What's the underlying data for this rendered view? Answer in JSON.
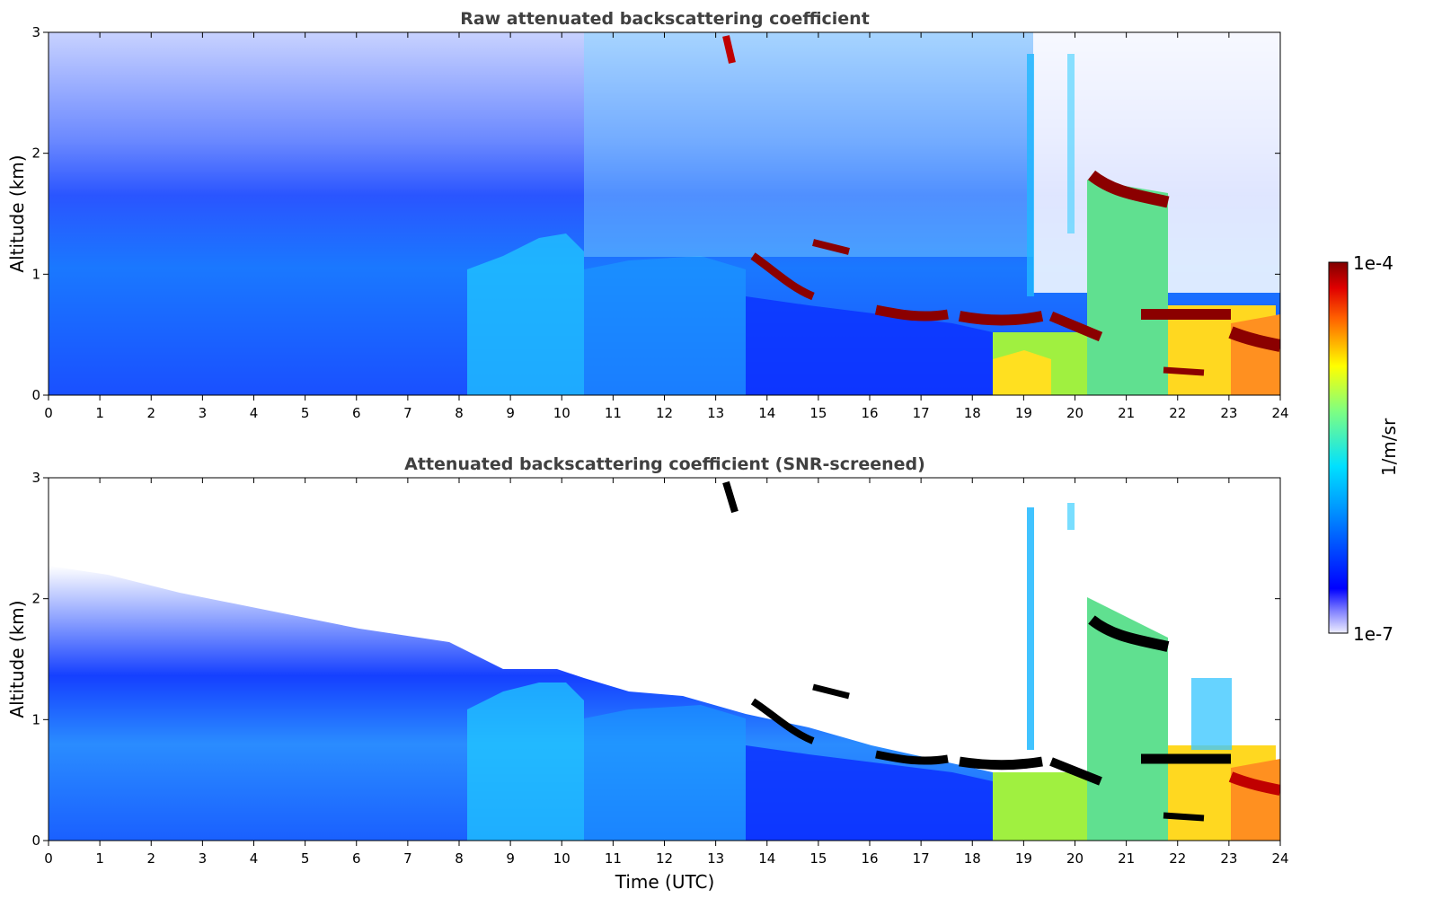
{
  "chart_data": [
    {
      "type": "heatmap",
      "title": "Raw attenuated backscattering coefficient",
      "xlabel": "",
      "ylabel": "Altitude (km)",
      "xlim": [
        0,
        24
      ],
      "ylim": [
        0,
        3
      ],
      "xticks": [
        "0",
        "1",
        "2",
        "3",
        "4",
        "5",
        "6",
        "7",
        "8",
        "9",
        "10",
        "11",
        "12",
        "13",
        "14",
        "15",
        "16",
        "17",
        "18",
        "19",
        "20",
        "21",
        "22",
        "23",
        "24"
      ],
      "yticks": [
        "0",
        "1",
        "2",
        "3"
      ],
      "cloud_base_km": [
        {
          "t": 13.7,
          "alt": 1.15
        },
        {
          "t": 14.5,
          "alt": 0.85
        },
        {
          "t": 15.0,
          "alt": 1.2
        },
        {
          "t": 16.5,
          "alt": 0.7
        },
        {
          "t": 17.5,
          "alt": 0.6
        },
        {
          "t": 18.5,
          "alt": 0.65
        },
        {
          "t": 19.5,
          "alt": 0.6
        },
        {
          "t": 20.4,
          "alt": 1.75
        },
        {
          "t": 21.5,
          "alt": 1.65
        },
        {
          "t": 21.8,
          "alt": 0.65
        },
        {
          "t": 22.7,
          "alt": 0.65
        },
        {
          "t": 23.6,
          "alt": 0.45
        }
      ]
    },
    {
      "type": "heatmap",
      "title": "Attenuated backscattering coefficient (SNR-screened)",
      "xlabel": "Time (UTC)",
      "ylabel": "Altitude (km)",
      "xlim": [
        0,
        24
      ],
      "ylim": [
        0,
        3
      ],
      "xticks": [
        "0",
        "1",
        "2",
        "3",
        "4",
        "5",
        "6",
        "7",
        "8",
        "9",
        "10",
        "11",
        "12",
        "13",
        "14",
        "15",
        "16",
        "17",
        "18",
        "19",
        "20",
        "21",
        "22",
        "23",
        "24"
      ],
      "yticks": [
        "0",
        "1",
        "2",
        "3"
      ],
      "cloud_base_km": [
        {
          "t": 13.7,
          "alt": 1.15
        },
        {
          "t": 14.5,
          "alt": 0.85
        },
        {
          "t": 15.0,
          "alt": 1.2
        },
        {
          "t": 16.5,
          "alt": 0.7
        },
        {
          "t": 17.5,
          "alt": 0.6
        },
        {
          "t": 18.5,
          "alt": 0.65
        },
        {
          "t": 19.5,
          "alt": 0.6
        },
        {
          "t": 20.4,
          "alt": 1.75
        },
        {
          "t": 21.5,
          "alt": 1.65
        },
        {
          "t": 21.8,
          "alt": 0.65
        },
        {
          "t": 22.7,
          "alt": 0.65
        },
        {
          "t": 23.6,
          "alt": 0.45
        }
      ]
    }
  ],
  "colorbar": {
    "min_label": "1e-7",
    "max_label": "1e-4",
    "label": "1/m/sr",
    "colormap": "jet",
    "scale": "log"
  },
  "colors": {
    "title": "#404040",
    "low": "#0000ff",
    "cloud": "#8b0000",
    "screened_cloud": "#000000"
  }
}
